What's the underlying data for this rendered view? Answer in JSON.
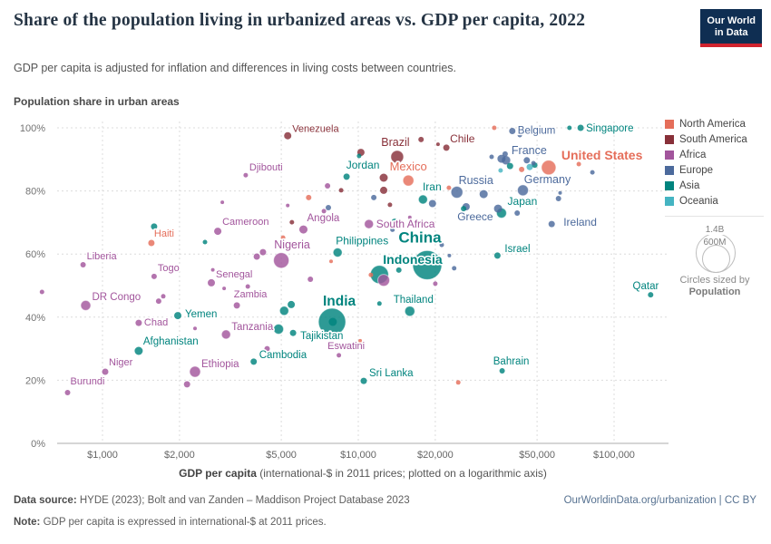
{
  "header": {
    "title": "Share of the population living in urbanized areas vs. GDP per capita, 2022",
    "subtitle": "GDP per capita is adjusted for inflation and differences in living costs between countries."
  },
  "logo": {
    "line1": "Our World",
    "line2": "in Data"
  },
  "axes": {
    "y_title": "Population share in urban areas",
    "x_title_bold": "GDP per capita",
    "x_title_rest": " (international-$ in 2011 prices; plotted on a logarithmic axis)",
    "x_ticks": [
      {
        "v": 1000,
        "label": "$1,000"
      },
      {
        "v": 2000,
        "label": "$2,000"
      },
      {
        "v": 5000,
        "label": "$5,000"
      },
      {
        "v": 10000,
        "label": "$10,000"
      },
      {
        "v": 20000,
        "label": "$20,000"
      },
      {
        "v": 50000,
        "label": "$50,000"
      },
      {
        "v": 100000,
        "label": "$100,000"
      }
    ],
    "y_ticks": [
      {
        "v": 0,
        "label": "0%"
      },
      {
        "v": 20,
        "label": "20%"
      },
      {
        "v": 40,
        "label": "40%"
      },
      {
        "v": 60,
        "label": "60%"
      },
      {
        "v": 80,
        "label": "80%"
      },
      {
        "v": 100,
        "label": "100%"
      }
    ]
  },
  "legend": {
    "items": [
      {
        "key": "NA",
        "label": "North America"
      },
      {
        "key": "SA",
        "label": "South America"
      },
      {
        "key": "AF",
        "label": "Africa"
      },
      {
        "key": "EU",
        "label": "Europe"
      },
      {
        "key": "AS",
        "label": "Asia"
      },
      {
        "key": "OC",
        "label": "Oceania"
      }
    ],
    "size_legend": {
      "big": "1.4B",
      "small": "600M",
      "caption1": "Circles sized by",
      "caption2": "Population"
    }
  },
  "chart_data": {
    "type": "scatter",
    "x_scale": "log",
    "xlabel": "GDP per capita (international-$ in 2011 prices; plotted on a logarithmic axis)",
    "ylabel": "Population share in urban areas",
    "x_range": [
      700,
      160000
    ],
    "y_range": [
      0,
      100
    ],
    "grid": true,
    "region_colors": {
      "NA": "#e56e5a",
      "SA": "#883039",
      "AF": "#a2559c",
      "EU": "#4c6a9c",
      "AS": "#00847e",
      "OC": "#45b4c2"
    },
    "points_format": [
      "name",
      "region",
      "gdp_per_capita",
      "urban_share_pct",
      "radius_px",
      "label_anchor",
      "label_dx",
      "label_dy",
      "label_font_px"
    ],
    "points": [
      [
        "Venezuela",
        "SA",
        5300,
        97.5,
        4,
        "s",
        5,
        -4,
        11
      ],
      [
        "Djibouti",
        "AF",
        3630,
        85,
        2.5,
        "s",
        4,
        -5,
        11
      ],
      [
        "Brazil",
        "SA",
        14200,
        90.8,
        7,
        "m",
        -2,
        -12,
        12.5
      ],
      [
        "Chile",
        "SA",
        22100,
        93.7,
        3.5,
        "s",
        4,
        -6,
        12
      ],
      [
        "Belgium",
        "EU",
        40000,
        99,
        3.5,
        "s",
        6,
        3,
        11.5
      ],
      [
        "Singapore",
        "AS",
        74000,
        100,
        3.5,
        "s",
        6,
        4,
        11.5
      ],
      [
        "France",
        "EU",
        37800,
        89.7,
        5,
        "s",
        6,
        -7,
        12.5
      ],
      [
        "United States",
        "NA",
        55500,
        87.4,
        8,
        "s",
        14,
        -9,
        14
      ],
      [
        "Mexico",
        "NA",
        15700,
        83.3,
        6,
        "m",
        0,
        -11,
        13
      ],
      [
        "Jordan",
        "AS",
        9000,
        84.5,
        3.5,
        "m",
        18,
        -9,
        12
      ],
      [
        "Russia",
        "EU",
        24300,
        79.6,
        6.5,
        "m",
        21,
        -9,
        12.5
      ],
      [
        "Germany",
        "EU",
        44000,
        80.2,
        6,
        "m",
        27,
        -8,
        12.5
      ],
      [
        "Iran",
        "AS",
        17900,
        77.3,
        5,
        "m",
        10,
        -10,
        12
      ],
      [
        "Japan",
        "AS",
        36300,
        73,
        5.5,
        "m",
        23,
        -9,
        12
      ],
      [
        "Greece",
        "EU",
        26400,
        75,
        4,
        "m",
        10,
        15,
        12
      ],
      [
        "Ireland",
        "EU",
        57000,
        69.5,
        3.5,
        "s",
        13,
        2,
        12
      ],
      [
        "Israel",
        "AS",
        35000,
        59.5,
        3.5,
        "s",
        8,
        -4,
        11.5
      ],
      [
        "South Africa",
        "AF",
        11000,
        69.5,
        5,
        "s",
        8,
        4,
        12
      ],
      [
        "China",
        "AS",
        18600,
        56.5,
        16,
        "m",
        -8,
        -25,
        17
      ],
      [
        "Indonesia",
        "AS",
        12100,
        53.5,
        10,
        "s",
        4,
        -12,
        14
      ],
      [
        "Philippines",
        "AS",
        8300,
        60.5,
        5,
        "s",
        -2,
        -9,
        12
      ],
      [
        "Thailand",
        "AS",
        15900,
        41.9,
        5.5,
        "m",
        4,
        -9,
        11.5
      ],
      [
        "India",
        "AS",
        7900,
        38.5,
        15,
        "m",
        8,
        -18,
        15.5
      ],
      [
        "Tajikistan",
        "AS",
        5560,
        35,
        3.5,
        "s",
        8,
        7,
        11.5
      ],
      [
        "Eswatini",
        "AF",
        8400,
        27.9,
        2.5,
        "m",
        8,
        -7,
        11
      ],
      [
        "Sri Lanka",
        "AS",
        10500,
        19.8,
        3.5,
        "s",
        6,
        -5,
        11.5
      ],
      [
        "Bahrain",
        "AS",
        36500,
        23,
        3,
        "m",
        10,
        -7,
        11.5
      ],
      [
        "Qatar",
        "AS",
        139000,
        47.1,
        3,
        "e",
        9,
        -6,
        11.5
      ],
      [
        "Cambodia",
        "AS",
        3900,
        25.9,
        3.5,
        "s",
        6,
        -4,
        11.5
      ],
      [
        "Ethiopia",
        "AF",
        2300,
        22.7,
        6,
        "s",
        7,
        -5,
        11.5
      ],
      [
        "Niger",
        "AF",
        1025,
        22.7,
        3.5,
        "s",
        4,
        -7,
        11
      ],
      [
        "Burundi",
        "AF",
        730,
        16.1,
        3,
        "s",
        3,
        -9,
        11
      ],
      [
        "Afghanistan",
        "AS",
        1385,
        29.3,
        4.5,
        "s",
        5,
        -7,
        11.5
      ],
      [
        "Chad",
        "AF",
        1385,
        38.2,
        3.5,
        "s",
        6,
        3,
        11
      ],
      [
        "Yemen",
        "AS",
        1970,
        40.5,
        4,
        "s",
        8,
        2,
        11.5
      ],
      [
        "Tanzania",
        "AF",
        3040,
        34.5,
        5,
        "s",
        6,
        -5,
        11.5
      ],
      [
        "Zambia",
        "AF",
        3350,
        43.7,
        3.5,
        "m",
        15,
        -9,
        11
      ],
      [
        "DR Congo",
        "AF",
        860,
        43.7,
        5.5,
        "s",
        7,
        -6,
        11.5
      ],
      [
        "Liberia",
        "AF",
        840,
        56.6,
        3,
        "s",
        4,
        -6,
        11
      ],
      [
        "Haiti",
        "NA",
        1553,
        63.5,
        3.5,
        "s",
        3,
        -7,
        11
      ],
      [
        "Togo",
        "AF",
        1592,
        52.9,
        3,
        "s",
        4,
        -6,
        11
      ],
      [
        "Senegal",
        "AF",
        2665,
        50.9,
        4,
        "s",
        5,
        -6,
        11
      ],
      [
        "Cameroon",
        "AF",
        2822,
        67.2,
        4,
        "s",
        5,
        -7,
        11
      ],
      [
        "Nigeria",
        "AF",
        5000,
        58,
        8.5,
        "m",
        12,
        -13,
        12.5
      ],
      [
        "Angola",
        "AF",
        6100,
        67.8,
        4.5,
        "s",
        4,
        -9,
        11.5
      ],
      [
        null,
        "NA",
        34000,
        100,
        2.5
      ],
      [
        null,
        "NA",
        22600,
        81,
        2.5
      ],
      [
        null,
        "NA",
        43500,
        86.8,
        3
      ],
      [
        null,
        "NA",
        72800,
        88.5,
        2.5
      ],
      [
        null,
        "NA",
        5080,
        65.2,
        2.5
      ],
      [
        null,
        "NA",
        11200,
        53.4,
        2.5
      ],
      [
        null,
        "NA",
        10170,
        32.5,
        2
      ],
      [
        null,
        "NA",
        24600,
        19.3,
        2.5
      ],
      [
        null,
        "NA",
        6400,
        77.9,
        3
      ],
      [
        null,
        "NA",
        7830,
        57.7,
        2
      ],
      [
        null,
        "SA",
        17600,
        96.3,
        3
      ],
      [
        null,
        "SA",
        20500,
        94.8,
        2
      ],
      [
        null,
        "SA",
        10240,
        92.2,
        4
      ],
      [
        null,
        "SA",
        12570,
        84.2,
        4.5
      ],
      [
        null,
        "SA",
        12570,
        80.2,
        4
      ],
      [
        null,
        "SA",
        8570,
        80.2,
        2.5
      ],
      [
        null,
        "SA",
        13300,
        75.6,
        2.5
      ],
      [
        null,
        "SA",
        5500,
        70.1,
        2.5
      ],
      [
        null,
        "AF",
        7580,
        81.6,
        3
      ],
      [
        null,
        "AF",
        7340,
        73.6,
        2.5
      ],
      [
        null,
        "AF",
        5300,
        75.4,
        2
      ],
      [
        null,
        "AF",
        2940,
        76.4,
        2
      ],
      [
        null,
        "AF",
        4240,
        60.6,
        3.5
      ],
      [
        null,
        "AF",
        4010,
        59.2,
        3.5
      ],
      [
        null,
        "AF",
        3700,
        49.7,
        2.5
      ],
      [
        null,
        "AF",
        2988,
        49.1,
        2
      ],
      [
        null,
        "AF",
        1658,
        45.1,
        3
      ],
      [
        null,
        "AF",
        1728,
        46.6,
        2.5
      ],
      [
        null,
        "AF",
        580,
        48,
        2.5
      ],
      [
        null,
        "AF",
        2300,
        36.4,
        2
      ],
      [
        null,
        "AF",
        2140,
        18.7,
        3.5
      ],
      [
        null,
        "AF",
        4400,
        30,
        3
      ],
      [
        null,
        "AF",
        6500,
        52,
        3
      ],
      [
        null,
        "AF",
        12570,
        51.7,
        6.5
      ],
      [
        null,
        "AF",
        20000,
        50.6,
        2.5
      ],
      [
        null,
        "AF",
        15900,
        71.6,
        2
      ],
      [
        null,
        "AF",
        2700,
        55,
        2
      ],
      [
        null,
        "AF",
        16300,
        45.2,
        2
      ],
      [
        null,
        "EU",
        36300,
        90.2,
        4.5
      ],
      [
        null,
        "EU",
        45600,
        89.7,
        3.5
      ],
      [
        null,
        "EU",
        37500,
        91.7,
        3
      ],
      [
        null,
        "EU",
        33200,
        90.8,
        2.5
      ],
      [
        null,
        "EU",
        42800,
        97.7,
        2.5
      ],
      [
        null,
        "EU",
        30900,
        79,
        4.5
      ],
      [
        null,
        "EU",
        35200,
        74.4,
        4.5
      ],
      [
        null,
        "EU",
        41800,
        73,
        3
      ],
      [
        null,
        "EU",
        60600,
        77.6,
        3
      ],
      [
        null,
        "EU",
        61500,
        79.4,
        2
      ],
      [
        null,
        "EU",
        82300,
        85.9,
        2.5
      ],
      [
        null,
        "EU",
        48400,
        88.8,
        2.5
      ],
      [
        null,
        "EU",
        50300,
        91.7,
        2
      ],
      [
        null,
        "EU",
        21200,
        62.9,
        2.5
      ],
      [
        null,
        "EU",
        22700,
        59.5,
        2
      ],
      [
        null,
        "EU",
        23700,
        55.5,
        2.5
      ],
      [
        null,
        "EU",
        11500,
        77.9,
        3
      ],
      [
        null,
        "EU",
        7640,
        74.7,
        3
      ],
      [
        null,
        "EU",
        19500,
        76,
        4
      ],
      [
        null,
        "EU",
        13600,
        67.7,
        2.5
      ],
      [
        null,
        "AS",
        66900,
        100,
        2.5
      ],
      [
        null,
        "AS",
        39200,
        87.9,
        3.5
      ],
      [
        null,
        "AS",
        49000,
        88.2,
        3
      ],
      [
        null,
        "AS",
        10070,
        91.1,
        2.5
      ],
      [
        null,
        "AS",
        1592,
        68.7,
        3.5
      ],
      [
        null,
        "AS",
        2515,
        63.8,
        2.5
      ],
      [
        null,
        "AS",
        25800,
        74.4,
        3
      ],
      [
        null,
        "AS",
        13900,
        70.1,
        4
      ],
      [
        null,
        "AS",
        5470,
        44,
        4
      ],
      [
        null,
        "AS",
        5130,
        42,
        5
      ],
      [
        null,
        "AS",
        12100,
        44.3,
        2.5
      ],
      [
        null,
        "AS",
        14400,
        54.9,
        3
      ],
      [
        null,
        "AS",
        4880,
        36.2,
        5.5
      ],
      [
        null,
        "AS",
        7950,
        38.5,
        4.5
      ],
      [
        null,
        "OC",
        46800,
        87.6,
        3.5
      ],
      [
        null,
        "OC",
        36000,
        86.5,
        2.5
      ]
    ]
  },
  "footer": {
    "source_bold": "Data source:",
    "source_text": " HYDE (2023); Bolt and van Zanden – Maddison Project Database 2023",
    "link": "OurWorldinData.org/urbanization | CC BY",
    "note_bold": "Note:",
    "note_text": " GDP per capita is expressed in international-$ at 2011 prices."
  }
}
